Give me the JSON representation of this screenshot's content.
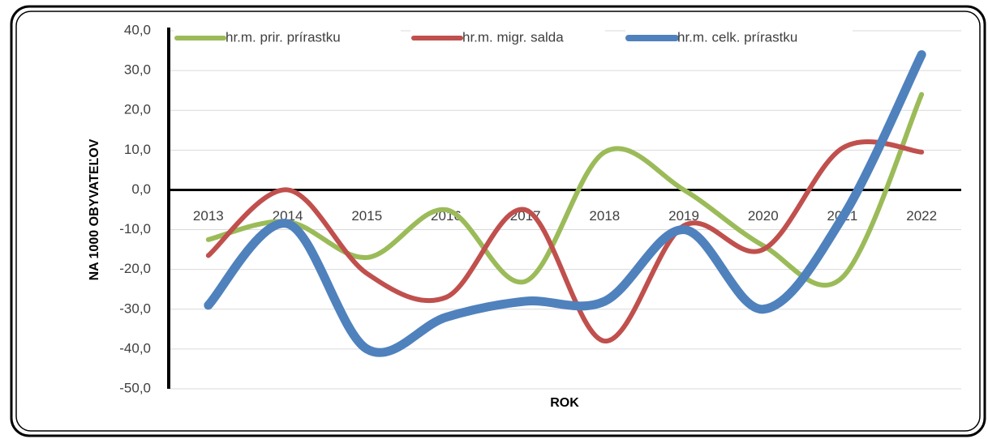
{
  "chart_data": {
    "type": "line",
    "y_label": "NA 1000 OBYVATEĽOV",
    "x_label": "ROK",
    "categories": [
      "2013",
      "2014",
      "2015",
      "2016",
      "2017",
      "2018",
      "2019",
      "2020",
      "2021",
      "2022"
    ],
    "series": [
      {
        "name": "hr.m. prir. prírastku",
        "color": "#9bbb59",
        "values": [
          -12.5,
          -8,
          -17,
          -5,
          -23,
          9.5,
          0,
          -14,
          -22,
          24
        ]
      },
      {
        "name": "hr.m. migr. salda",
        "color": "#c0504d",
        "values": [
          -16.5,
          0,
          -21,
          -27,
          -5,
          -38,
          -9,
          -15,
          10.5,
          9.5
        ]
      },
      {
        "name": "hr.m. celk. prírastku",
        "color": "#4f81bd",
        "values": [
          -29,
          -8.5,
          -40,
          -32,
          -28,
          -28,
          -10,
          -30,
          -7,
          34
        ]
      }
    ],
    "ylim": [
      -50,
      40
    ],
    "yticks": [
      {
        "value": -50,
        "label": "-50,0"
      },
      {
        "value": -40,
        "label": "-40,0"
      },
      {
        "value": -30,
        "label": "-30,0"
      },
      {
        "value": -20,
        "label": "-20,0"
      },
      {
        "value": -10,
        "label": "-10,0"
      },
      {
        "value": 0,
        "label": "0,0"
      },
      {
        "value": 10,
        "label": "10,0"
      },
      {
        "value": 20,
        "label": "20,0"
      },
      {
        "value": 30,
        "label": "30,0"
      },
      {
        "value": 40,
        "label": "40,0"
      }
    ],
    "grid": true,
    "smooth": true,
    "legend": "top"
  }
}
